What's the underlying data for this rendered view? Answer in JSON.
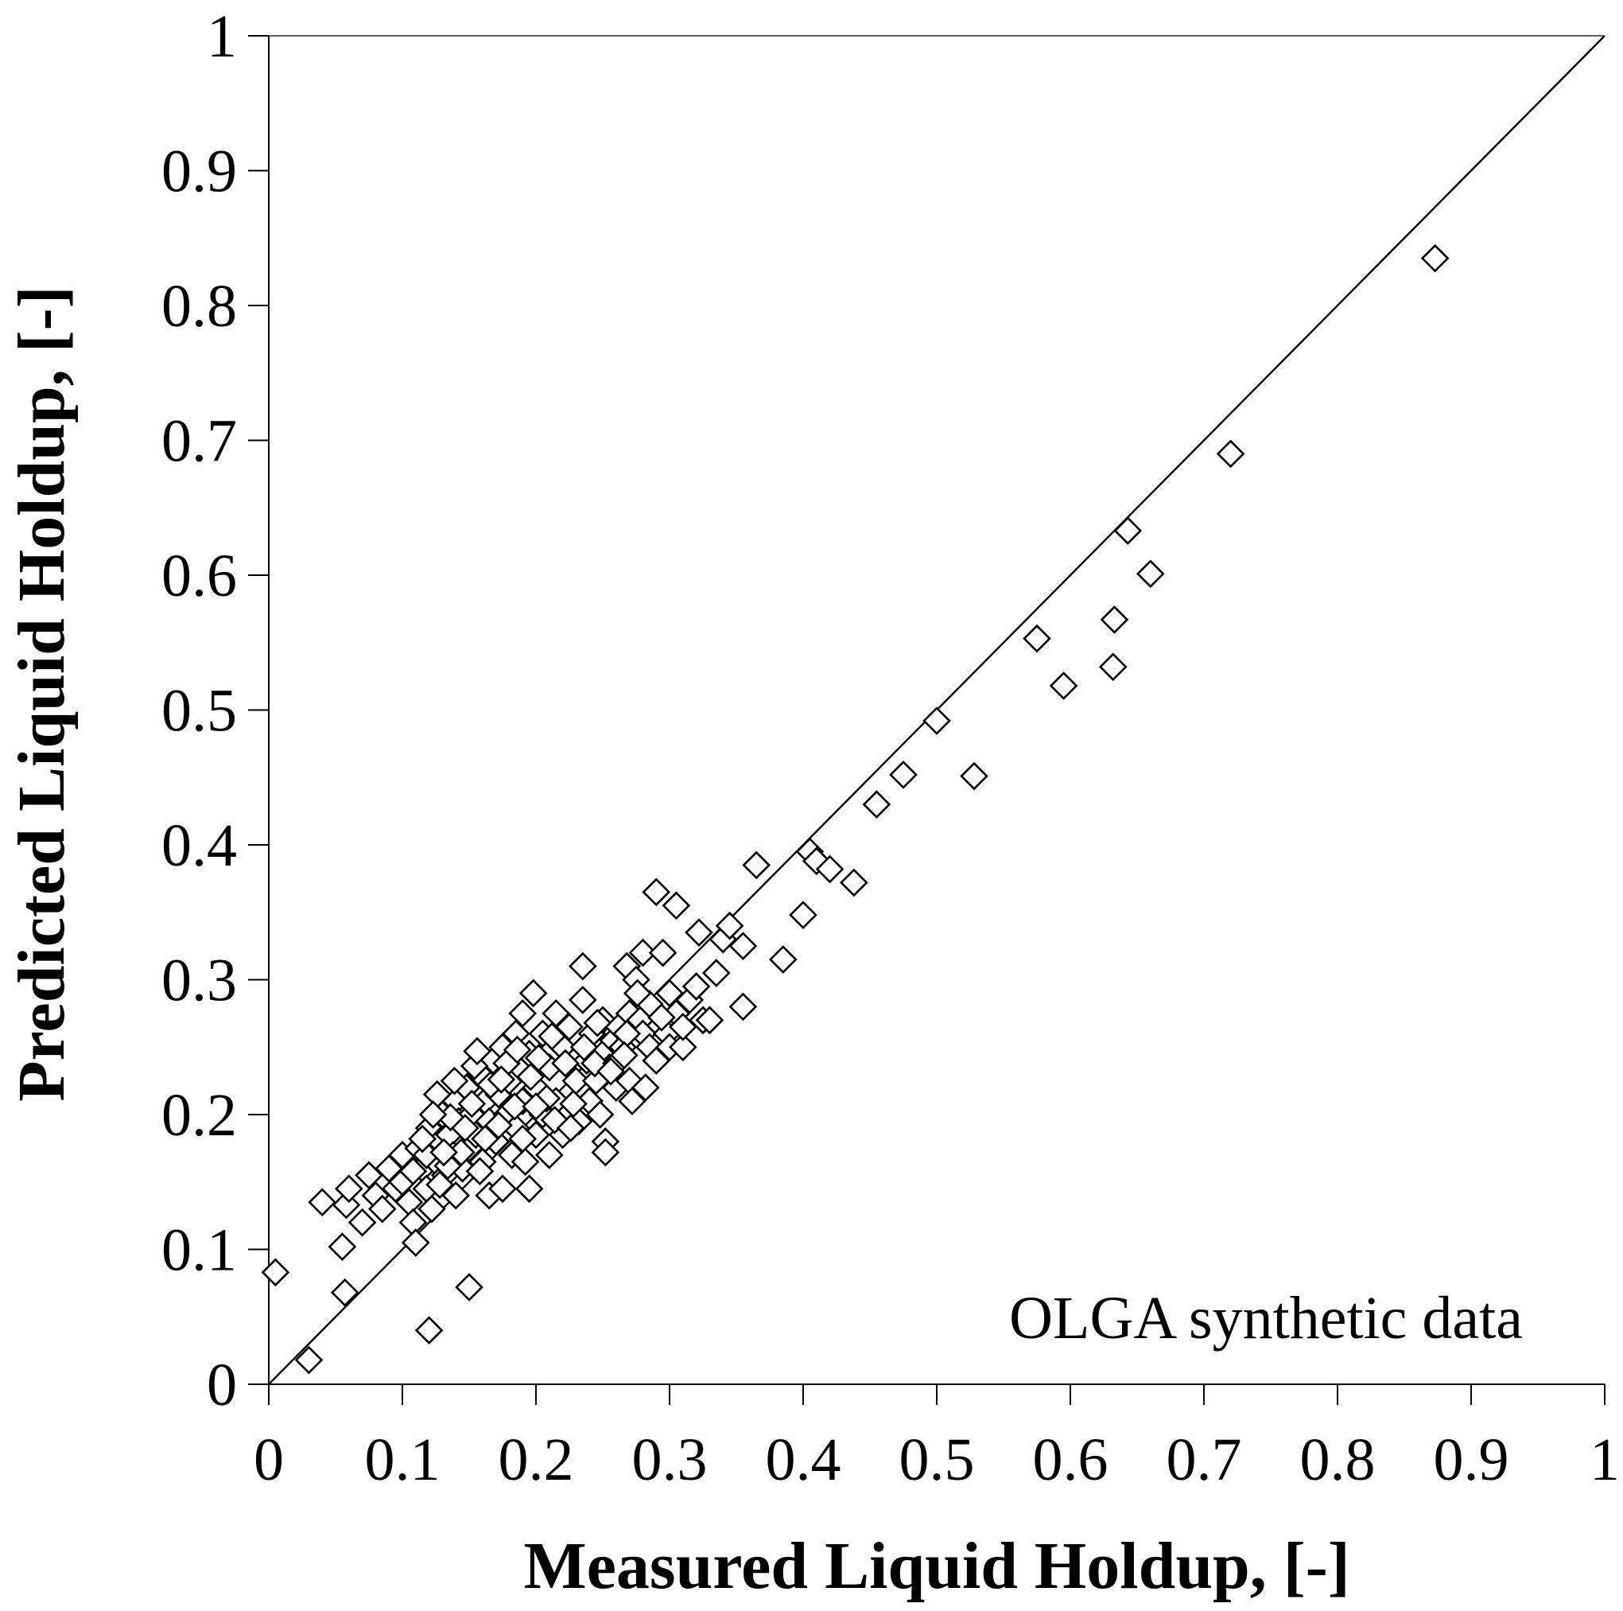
{
  "chart_data": {
    "type": "scatter",
    "xlabel": "Measured Liquid Holdup, [-]",
    "ylabel": "Predicted Liquid Holdup, [-]",
    "annotation": "OLGA synthetic data",
    "xlim": [
      0,
      1
    ],
    "ylim": [
      0,
      1
    ],
    "xticks": [
      "0",
      "0.1",
      "0.2",
      "0.3",
      "0.4",
      "0.5",
      "0.6",
      "0.7",
      "0.8",
      "0.9",
      "1"
    ],
    "yticks": [
      "0",
      "0.1",
      "0.2",
      "0.3",
      "0.4",
      "0.5",
      "0.6",
      "0.7",
      "0.8",
      "0.9",
      "1"
    ],
    "reference_line": {
      "name": "y = x",
      "x": [
        0,
        1
      ],
      "y": [
        0,
        1
      ]
    },
    "grid": false,
    "marker": "diamond",
    "series": [
      {
        "name": "OLGA synthetic data",
        "points": [
          [
            0.005,
            0.083
          ],
          [
            0.03,
            0.018
          ],
          [
            0.04,
            0.135
          ],
          [
            0.055,
            0.102
          ],
          [
            0.057,
            0.068
          ],
          [
            0.058,
            0.133
          ],
          [
            0.06,
            0.145
          ],
          [
            0.07,
            0.12
          ],
          [
            0.075,
            0.155
          ],
          [
            0.08,
            0.14
          ],
          [
            0.085,
            0.13
          ],
          [
            0.09,
            0.16
          ],
          [
            0.095,
            0.145
          ],
          [
            0.1,
            0.17
          ],
          [
            0.1,
            0.15
          ],
          [
            0.105,
            0.135
          ],
          [
            0.108,
            0.12
          ],
          [
            0.11,
            0.105
          ],
          [
            0.112,
            0.175
          ],
          [
            0.115,
            0.16
          ],
          [
            0.118,
            0.145
          ],
          [
            0.12,
            0.19
          ],
          [
            0.12,
            0.04
          ],
          [
            0.122,
            0.13
          ],
          [
            0.125,
            0.165
          ],
          [
            0.128,
            0.18
          ],
          [
            0.13,
            0.2
          ],
          [
            0.132,
            0.155
          ],
          [
            0.135,
            0.185
          ],
          [
            0.138,
            0.17
          ],
          [
            0.14,
            0.21
          ],
          [
            0.14,
            0.14
          ],
          [
            0.142,
            0.195
          ],
          [
            0.145,
            0.16
          ],
          [
            0.148,
            0.22
          ],
          [
            0.15,
            0.175
          ],
          [
            0.15,
            0.072
          ],
          [
            0.152,
            0.2
          ],
          [
            0.155,
            0.185
          ],
          [
            0.158,
            0.23
          ],
          [
            0.16,
            0.165
          ],
          [
            0.162,
            0.21
          ],
          [
            0.165,
            0.14
          ],
          [
            0.165,
            0.195
          ],
          [
            0.168,
            0.24
          ],
          [
            0.17,
            0.18
          ],
          [
            0.172,
            0.215
          ],
          [
            0.175,
            0.145
          ],
          [
            0.175,
            0.25
          ],
          [
            0.178,
            0.2
          ],
          [
            0.18,
            0.225
          ],
          [
            0.182,
            0.17
          ],
          [
            0.185,
            0.26
          ],
          [
            0.185,
            0.19
          ],
          [
            0.188,
            0.235
          ],
          [
            0.19,
            0.275
          ],
          [
            0.19,
            0.21
          ],
          [
            0.192,
            0.165
          ],
          [
            0.195,
            0.245
          ],
          [
            0.195,
            0.145
          ],
          [
            0.198,
            0.29
          ],
          [
            0.2,
            0.22
          ],
          [
            0.2,
            0.185
          ],
          [
            0.205,
            0.26
          ],
          [
            0.205,
            0.2
          ],
          [
            0.21,
            0.235
          ],
          [
            0.21,
            0.17
          ],
          [
            0.215,
            0.275
          ],
          [
            0.215,
            0.21
          ],
          [
            0.22,
            0.25
          ],
          [
            0.22,
            0.185
          ],
          [
            0.225,
            0.265
          ],
          [
            0.23,
            0.225
          ],
          [
            0.232,
            0.195
          ],
          [
            0.235,
            0.31
          ],
          [
            0.235,
            0.285
          ],
          [
            0.238,
            0.24
          ],
          [
            0.24,
            0.21
          ],
          [
            0.242,
            0.26
          ],
          [
            0.245,
            0.225
          ],
          [
            0.248,
            0.2
          ],
          [
            0.25,
            0.27
          ],
          [
            0.25,
            0.245
          ],
          [
            0.252,
            0.18
          ],
          [
            0.252,
            0.172
          ],
          [
            0.255,
            0.235
          ],
          [
            0.258,
            0.255
          ],
          [
            0.26,
            0.22
          ],
          [
            0.262,
            0.265
          ],
          [
            0.265,
            0.25
          ],
          [
            0.268,
            0.31
          ],
          [
            0.27,
            0.275
          ],
          [
            0.27,
            0.225
          ],
          [
            0.272,
            0.21
          ],
          [
            0.275,
            0.3
          ],
          [
            0.278,
            0.27
          ],
          [
            0.28,
            0.32
          ],
          [
            0.28,
            0.26
          ],
          [
            0.282,
            0.22
          ],
          [
            0.285,
            0.25
          ],
          [
            0.29,
            0.365
          ],
          [
            0.29,
            0.24
          ],
          [
            0.295,
            0.32
          ],
          [
            0.298,
            0.26
          ],
          [
            0.3,
            0.25
          ],
          [
            0.305,
            0.355
          ],
          [
            0.305,
            0.275
          ],
          [
            0.31,
            0.25
          ],
          [
            0.315,
            0.285
          ],
          [
            0.32,
            0.295
          ],
          [
            0.322,
            0.335
          ],
          [
            0.325,
            0.27
          ],
          [
            0.33,
            0.27
          ],
          [
            0.335,
            0.305
          ],
          [
            0.34,
            0.33
          ],
          [
            0.345,
            0.34
          ],
          [
            0.355,
            0.325
          ],
          [
            0.355,
            0.28
          ],
          [
            0.365,
            0.385
          ],
          [
            0.385,
            0.315
          ],
          [
            0.4,
            0.348
          ],
          [
            0.405,
            0.395
          ],
          [
            0.41,
            0.388
          ],
          [
            0.42,
            0.382
          ],
          [
            0.438,
            0.372
          ],
          [
            0.455,
            0.43
          ],
          [
            0.475,
            0.452
          ],
          [
            0.5,
            0.492
          ],
          [
            0.528,
            0.451
          ],
          [
            0.575,
            0.553
          ],
          [
            0.595,
            0.518
          ],
          [
            0.632,
            0.532
          ],
          [
            0.633,
            0.567
          ],
          [
            0.643,
            0.633
          ],
          [
            0.66,
            0.601
          ],
          [
            0.72,
            0.69
          ],
          [
            0.873,
            0.835
          ],
          [
            0.108,
            0.158
          ],
          [
            0.118,
            0.17
          ],
          [
            0.128,
            0.148
          ],
          [
            0.136,
            0.198
          ],
          [
            0.144,
            0.172
          ],
          [
            0.152,
            0.208
          ],
          [
            0.158,
            0.158
          ],
          [
            0.166,
            0.222
          ],
          [
            0.172,
            0.192
          ],
          [
            0.178,
            0.238
          ],
          [
            0.184,
            0.206
          ],
          [
            0.19,
            0.182
          ],
          [
            0.196,
            0.228
          ],
          [
            0.202,
            0.242
          ],
          [
            0.208,
            0.212
          ],
          [
            0.214,
            0.196
          ],
          [
            0.222,
            0.238
          ],
          [
            0.228,
            0.208
          ],
          [
            0.236,
            0.25
          ],
          [
            0.244,
            0.238
          ],
          [
            0.26,
            0.238
          ],
          [
            0.268,
            0.26
          ],
          [
            0.285,
            0.282
          ],
          [
            0.3,
            0.29
          ],
          [
            0.31,
            0.265
          ],
          [
            0.126,
            0.215
          ],
          [
            0.134,
            0.162
          ],
          [
            0.154,
            0.236
          ],
          [
            0.162,
            0.182
          ],
          [
            0.174,
            0.226
          ],
          [
            0.186,
            0.248
          ],
          [
            0.2,
            0.206
          ],
          [
            0.212,
            0.258
          ],
          [
            0.226,
            0.19
          ],
          [
            0.246,
            0.268
          ],
          [
            0.256,
            0.232
          ],
          [
            0.266,
            0.244
          ],
          [
            0.276,
            0.29
          ],
          [
            0.294,
            0.272
          ],
          [
            0.115,
            0.182
          ],
          [
            0.123,
            0.2
          ],
          [
            0.131,
            0.172
          ],
          [
            0.139,
            0.225
          ],
          [
            0.147,
            0.19
          ],
          [
            0.156,
            0.247
          ]
        ]
      }
    ]
  }
}
